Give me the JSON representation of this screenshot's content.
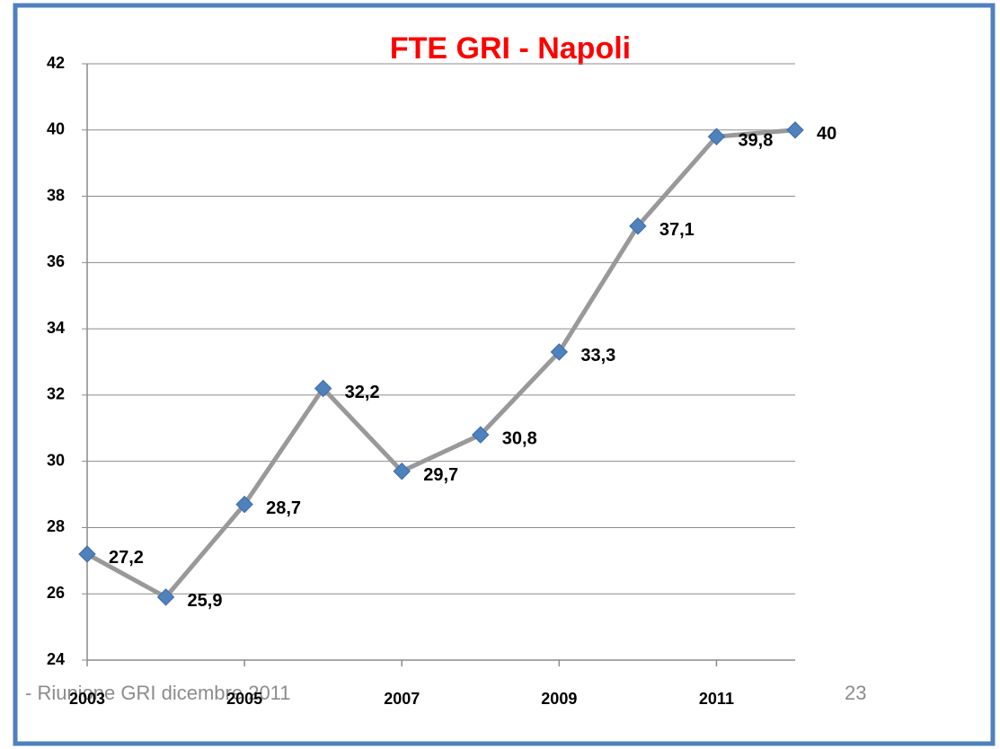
{
  "chart_data": {
    "type": "line",
    "title": "FTE GRI - Napoli",
    "x": [
      2003,
      2004,
      2005,
      2006,
      2007,
      2008,
      2009,
      2010,
      2011,
      2012
    ],
    "series": [
      {
        "name": "FTE",
        "color": "#4f81bd",
        "values": [
          27.2,
          25.9,
          28.7,
          32.2,
          29.7,
          30.8,
          33.3,
          37.1,
          39.8,
          40
        ],
        "value_labels": [
          "27,2",
          "25,9",
          "28,7",
          "32,2",
          "29,7",
          "30,8",
          "33,3",
          "37,1",
          "39,8",
          "40"
        ]
      }
    ],
    "line_color": "#999999",
    "xlim": [
      2003,
      2012
    ],
    "xticks": [
      2003,
      2005,
      2007,
      2009,
      2011
    ],
    "ylim": [
      24,
      42
    ],
    "yticks": [
      24,
      26,
      28,
      30,
      32,
      34,
      36,
      38,
      40,
      42
    ],
    "grid": true
  },
  "footer": {
    "text": "- Riunione GRI dicembre 2011",
    "page": "23"
  }
}
